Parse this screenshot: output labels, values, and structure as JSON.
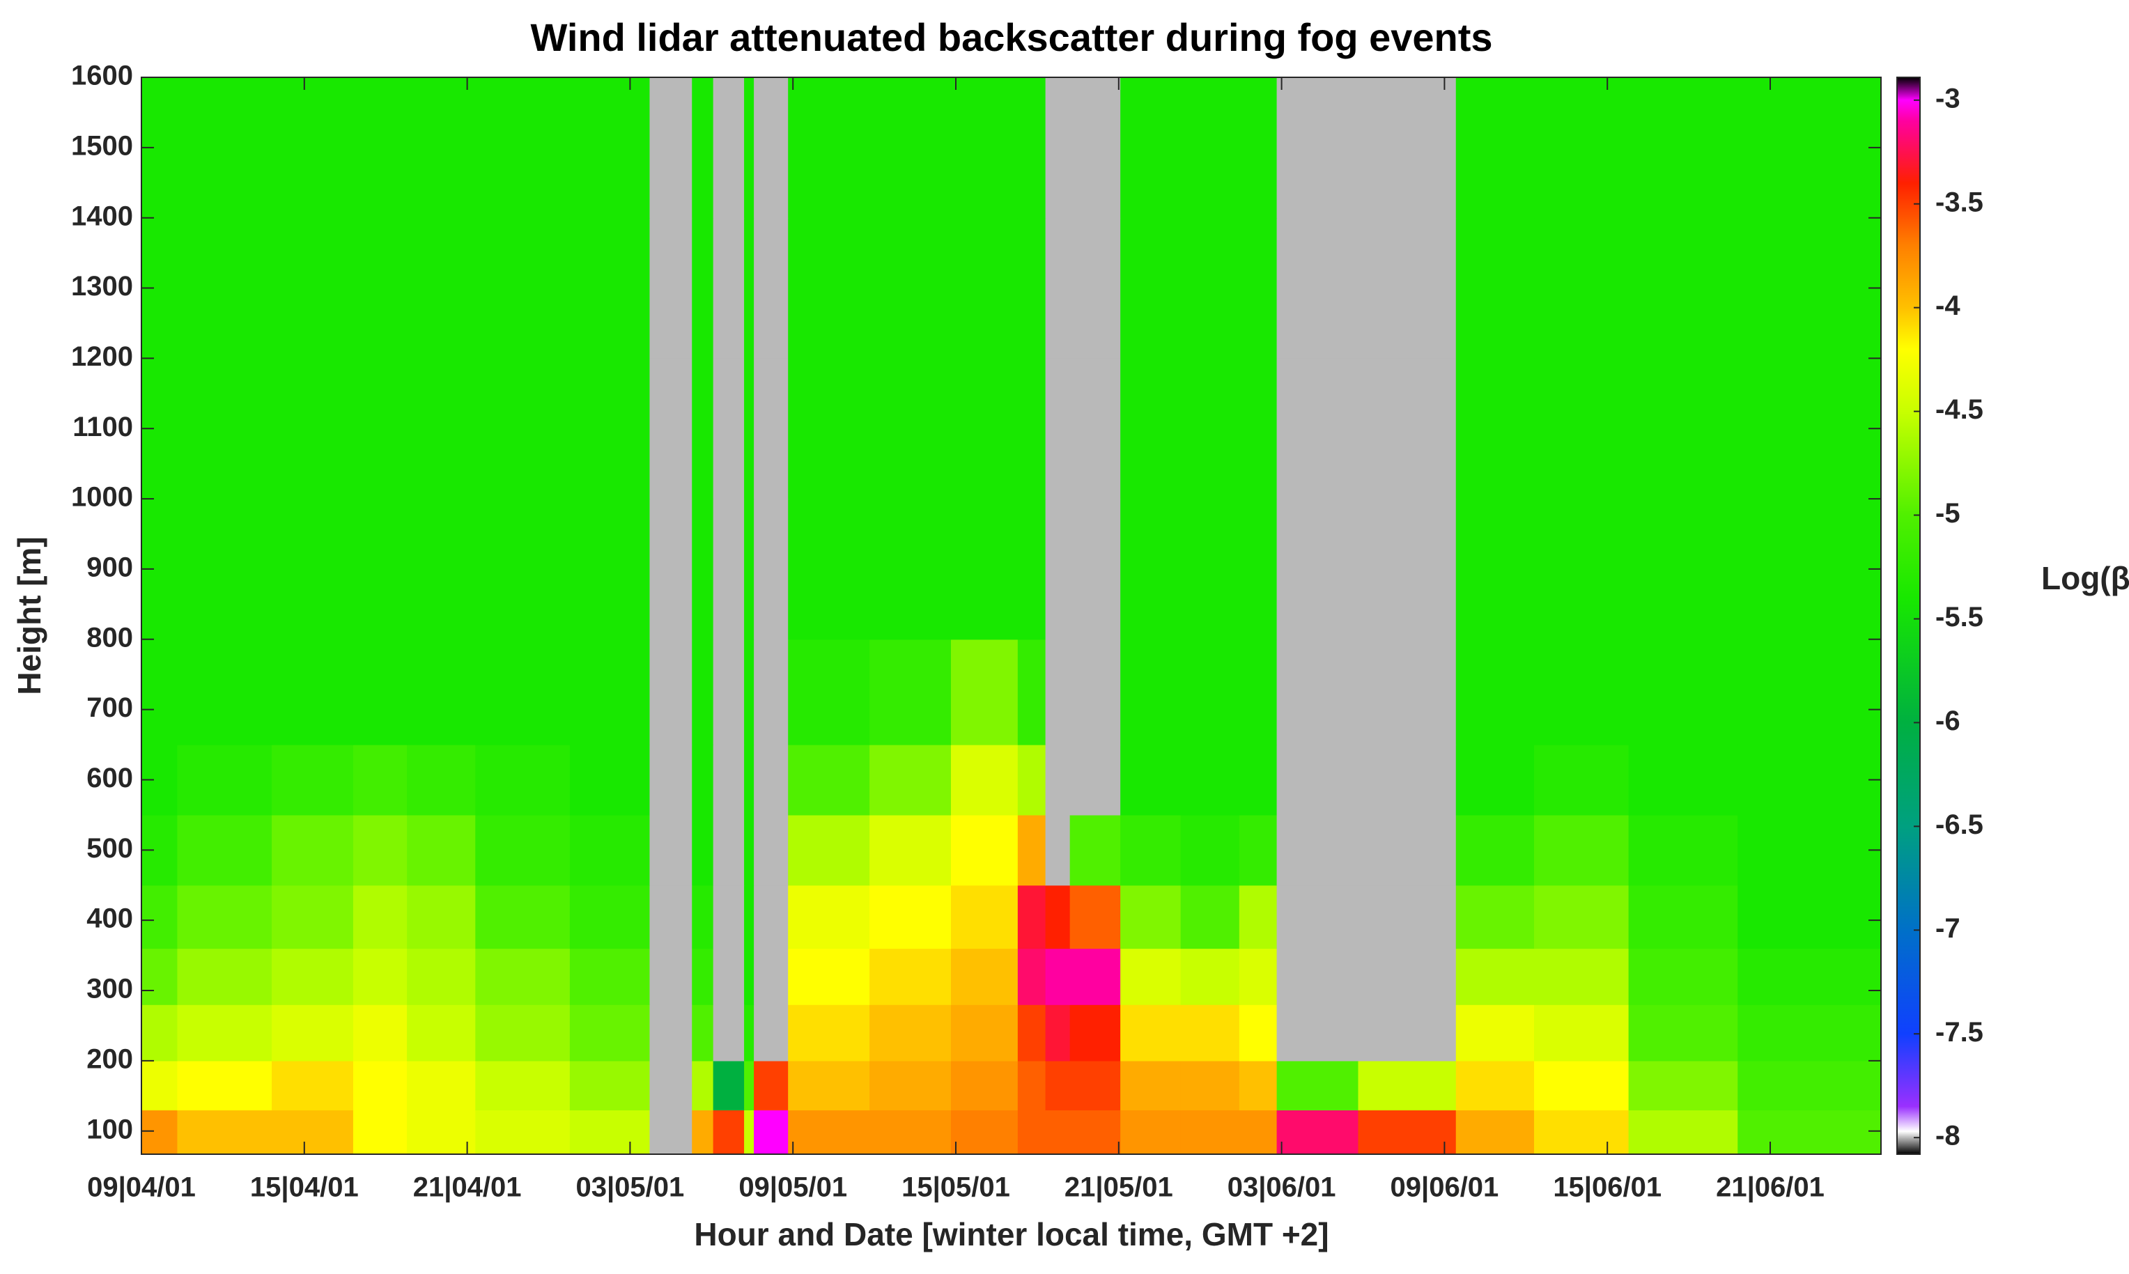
{
  "chart_data": {
    "type": "heatmap",
    "title": "Wind lidar attenuated backscatter during fog events",
    "x_label": "Hour and Date [winter local time, GMT +2]",
    "y_label": "Height [m]",
    "colorbar_label": "Log(β)",
    "x": [
      0,
      0.22,
      0.8,
      1.3,
      1.63,
      2.05,
      2.63,
      3.12,
      3.38,
      3.51,
      3.7,
      3.76,
      3.97,
      4.47,
      4.97,
      5.38,
      5.55,
      5.7,
      6.01,
      6.38,
      6.74,
      6.97,
      7.47,
      8.07,
      8.55,
      9.13,
      9.8,
      10.68
    ],
    "y": [
      67,
      130,
      200,
      280,
      360,
      450,
      550,
      650,
      800,
      1000,
      1200,
      1400,
      1600
    ],
    "z": [
      [
        -3.8,
        -4.0,
        -4.0,
        -4.2,
        -4.3,
        -4.4,
        -4.5,
        -8,
        -3.9,
        -3.5,
        -4.5,
        -3.0,
        -3.8,
        -3.8,
        -3.7,
        -3.6,
        -3.6,
        -3.6,
        -3.8,
        -3.8,
        -3.8,
        -3.2,
        -3.5,
        -3.9,
        -4.1,
        -4.6,
        -5.0
      ],
      [
        -4.3,
        -4.2,
        -4.1,
        -4.2,
        -4.3,
        -4.5,
        -4.7,
        -8,
        -4.6,
        -6.0,
        -5.0,
        -3.5,
        -4.0,
        -3.9,
        -3.8,
        -3.6,
        -3.5,
        -3.5,
        -3.9,
        -3.9,
        -4.0,
        -5.0,
        -4.5,
        -4.1,
        -4.2,
        -4.8,
        -5.1
      ],
      [
        -4.6,
        -4.5,
        -4.4,
        -4.3,
        -4.5,
        -4.7,
        -4.9,
        -8,
        -5.0,
        -8,
        -5.3,
        -8,
        -4.1,
        -4.0,
        -3.9,
        -3.5,
        -3.3,
        -3.4,
        -4.1,
        -4.1,
        -4.2,
        -8,
        -8,
        -4.3,
        -4.4,
        -5.0,
        -5.2
      ],
      [
        -4.9,
        -4.7,
        -4.6,
        -4.5,
        -4.6,
        -4.8,
        -5.0,
        -8,
        -5.2,
        -8,
        -5.4,
        -8,
        -4.2,
        -4.1,
        -4.0,
        -3.2,
        -3.1,
        -3.1,
        -4.4,
        -4.5,
        -4.4,
        -8,
        -8,
        -4.6,
        -4.6,
        -5.1,
        -5.3
      ],
      [
        -5.1,
        -4.9,
        -4.8,
        -4.6,
        -4.7,
        -5.0,
        -5.2,
        -8,
        -5.3,
        -8,
        -5.4,
        -8,
        -4.3,
        -4.2,
        -4.1,
        -3.3,
        -3.4,
        -3.6,
        -4.8,
        -5.0,
        -4.6,
        -8,
        -8,
        -4.9,
        -4.8,
        -5.2,
        -5.4
      ],
      [
        -5.3,
        -5.1,
        -4.9,
        -4.8,
        -4.9,
        -5.2,
        -5.3,
        -8,
        -5.4,
        -8,
        -5.4,
        -8,
        -4.6,
        -4.4,
        -4.2,
        -3.9,
        -8,
        -5.0,
        -5.2,
        -5.3,
        -5.2,
        -8,
        -8,
        -5.2,
        -5.0,
        -5.3,
        -5.4
      ],
      [
        -5.4,
        -5.3,
        -5.2,
        -5.1,
        -5.2,
        -5.3,
        -5.4,
        -8,
        -5.4,
        -8,
        -5.4,
        -8,
        -5.0,
        -4.8,
        -4.4,
        -4.6,
        -8,
        -8,
        -5.4,
        -5.4,
        -5.4,
        -8,
        -8,
        -5.4,
        -5.3,
        -5.4,
        -5.4
      ],
      [
        -5.4,
        -5.4,
        -5.4,
        -5.4,
        -5.4,
        -5.4,
        -5.4,
        -8,
        -5.4,
        -8,
        -5.4,
        -8,
        -5.3,
        -5.2,
        -4.8,
        -5.2,
        -8,
        -8,
        -5.4,
        -5.4,
        -5.4,
        -8,
        -8,
        -5.4,
        -5.4,
        -5.4,
        -5.4
      ],
      [
        -5.4,
        -5.4,
        -5.4,
        -5.4,
        -5.4,
        -5.4,
        -5.4,
        -8,
        -5.4,
        -8,
        -5.4,
        -8,
        -5.4,
        -5.4,
        -5.4,
        -5.4,
        -8,
        -8,
        -5.4,
        -5.4,
        -5.4,
        -8,
        -8,
        -5.4,
        -5.4,
        -5.4,
        -5.4
      ],
      [
        -5.4,
        -5.4,
        -5.4,
        -5.4,
        -5.4,
        -5.4,
        -5.4,
        -8,
        -5.4,
        -8,
        -5.4,
        -8,
        -5.4,
        -5.4,
        -5.4,
        -5.4,
        -8,
        -8,
        -5.4,
        -5.4,
        -5.4,
        -8,
        -8,
        -5.4,
        -5.4,
        -5.4,
        -5.4
      ],
      [
        -5.4,
        -5.4,
        -5.4,
        -5.4,
        -5.4,
        -5.4,
        -5.4,
        -8,
        -5.4,
        -8,
        -5.4,
        -8,
        -5.4,
        -5.4,
        -5.4,
        -5.4,
        -8,
        -8,
        -5.4,
        -5.4,
        -5.4,
        -8,
        -8,
        -5.4,
        -5.4,
        -5.4,
        -5.4
      ],
      [
        -5.4,
        -5.4,
        -5.4,
        -5.4,
        -5.4,
        -5.4,
        -5.4,
        -8,
        -5.4,
        -8,
        -5.4,
        -8,
        -5.4,
        -5.4,
        -5.4,
        -5.4,
        -8,
        -8,
        -5.4,
        -5.4,
        -5.4,
        -8,
        -8,
        -5.4,
        -5.4,
        -5.4,
        -5.4
      ]
    ],
    "xlim": [
      0,
      10.68
    ],
    "xticks": [
      {
        "value": 0,
        "label": "09|04/01"
      },
      {
        "value": 1,
        "label": "15|04/01"
      },
      {
        "value": 2,
        "label": "21|04/01"
      },
      {
        "value": 3,
        "label": "03|05/01"
      },
      {
        "value": 4,
        "label": "09|05/01"
      },
      {
        "value": 5,
        "label": "15|05/01"
      },
      {
        "value": 6,
        "label": "21|05/01"
      },
      {
        "value": 7,
        "label": "03|06/01"
      },
      {
        "value": 8,
        "label": "09|06/01"
      },
      {
        "value": 9,
        "label": "15|06/01"
      },
      {
        "value": 10,
        "label": "21|06/01"
      }
    ],
    "ylim": [
      67,
      1600
    ],
    "yticks": [
      100,
      200,
      300,
      400,
      500,
      600,
      700,
      800,
      900,
      1000,
      1100,
      1200,
      1300,
      1400,
      1500,
      1600
    ],
    "clim": [
      -8.08,
      -2.89
    ],
    "cticks": [
      -3,
      -3.5,
      -4,
      -4.5,
      -5,
      -5.5,
      -6,
      -6.5,
      -7,
      -7.5,
      -8
    ],
    "colormap": [
      [
        -8.08,
        "#000000"
      ],
      [
        -7.97,
        "#ffffff"
      ],
      [
        -7.85,
        "#9a30ff"
      ],
      [
        -7.5,
        "#1040ff"
      ],
      [
        -7.0,
        "#0070c8"
      ],
      [
        -6.5,
        "#00a080"
      ],
      [
        -6.0,
        "#00b040"
      ],
      [
        -5.4,
        "#18e800"
      ],
      [
        -5.0,
        "#50f000"
      ],
      [
        -4.5,
        "#c8ff00"
      ],
      [
        -4.2,
        "#ffff00"
      ],
      [
        -4.0,
        "#ffc000"
      ],
      [
        -3.7,
        "#ff8000"
      ],
      [
        -3.4,
        "#ff2000"
      ],
      [
        -3.1,
        "#ff00a0"
      ],
      [
        -3.0,
        "#ff00ff"
      ],
      [
        -2.89,
        "#000000"
      ]
    ]
  }
}
